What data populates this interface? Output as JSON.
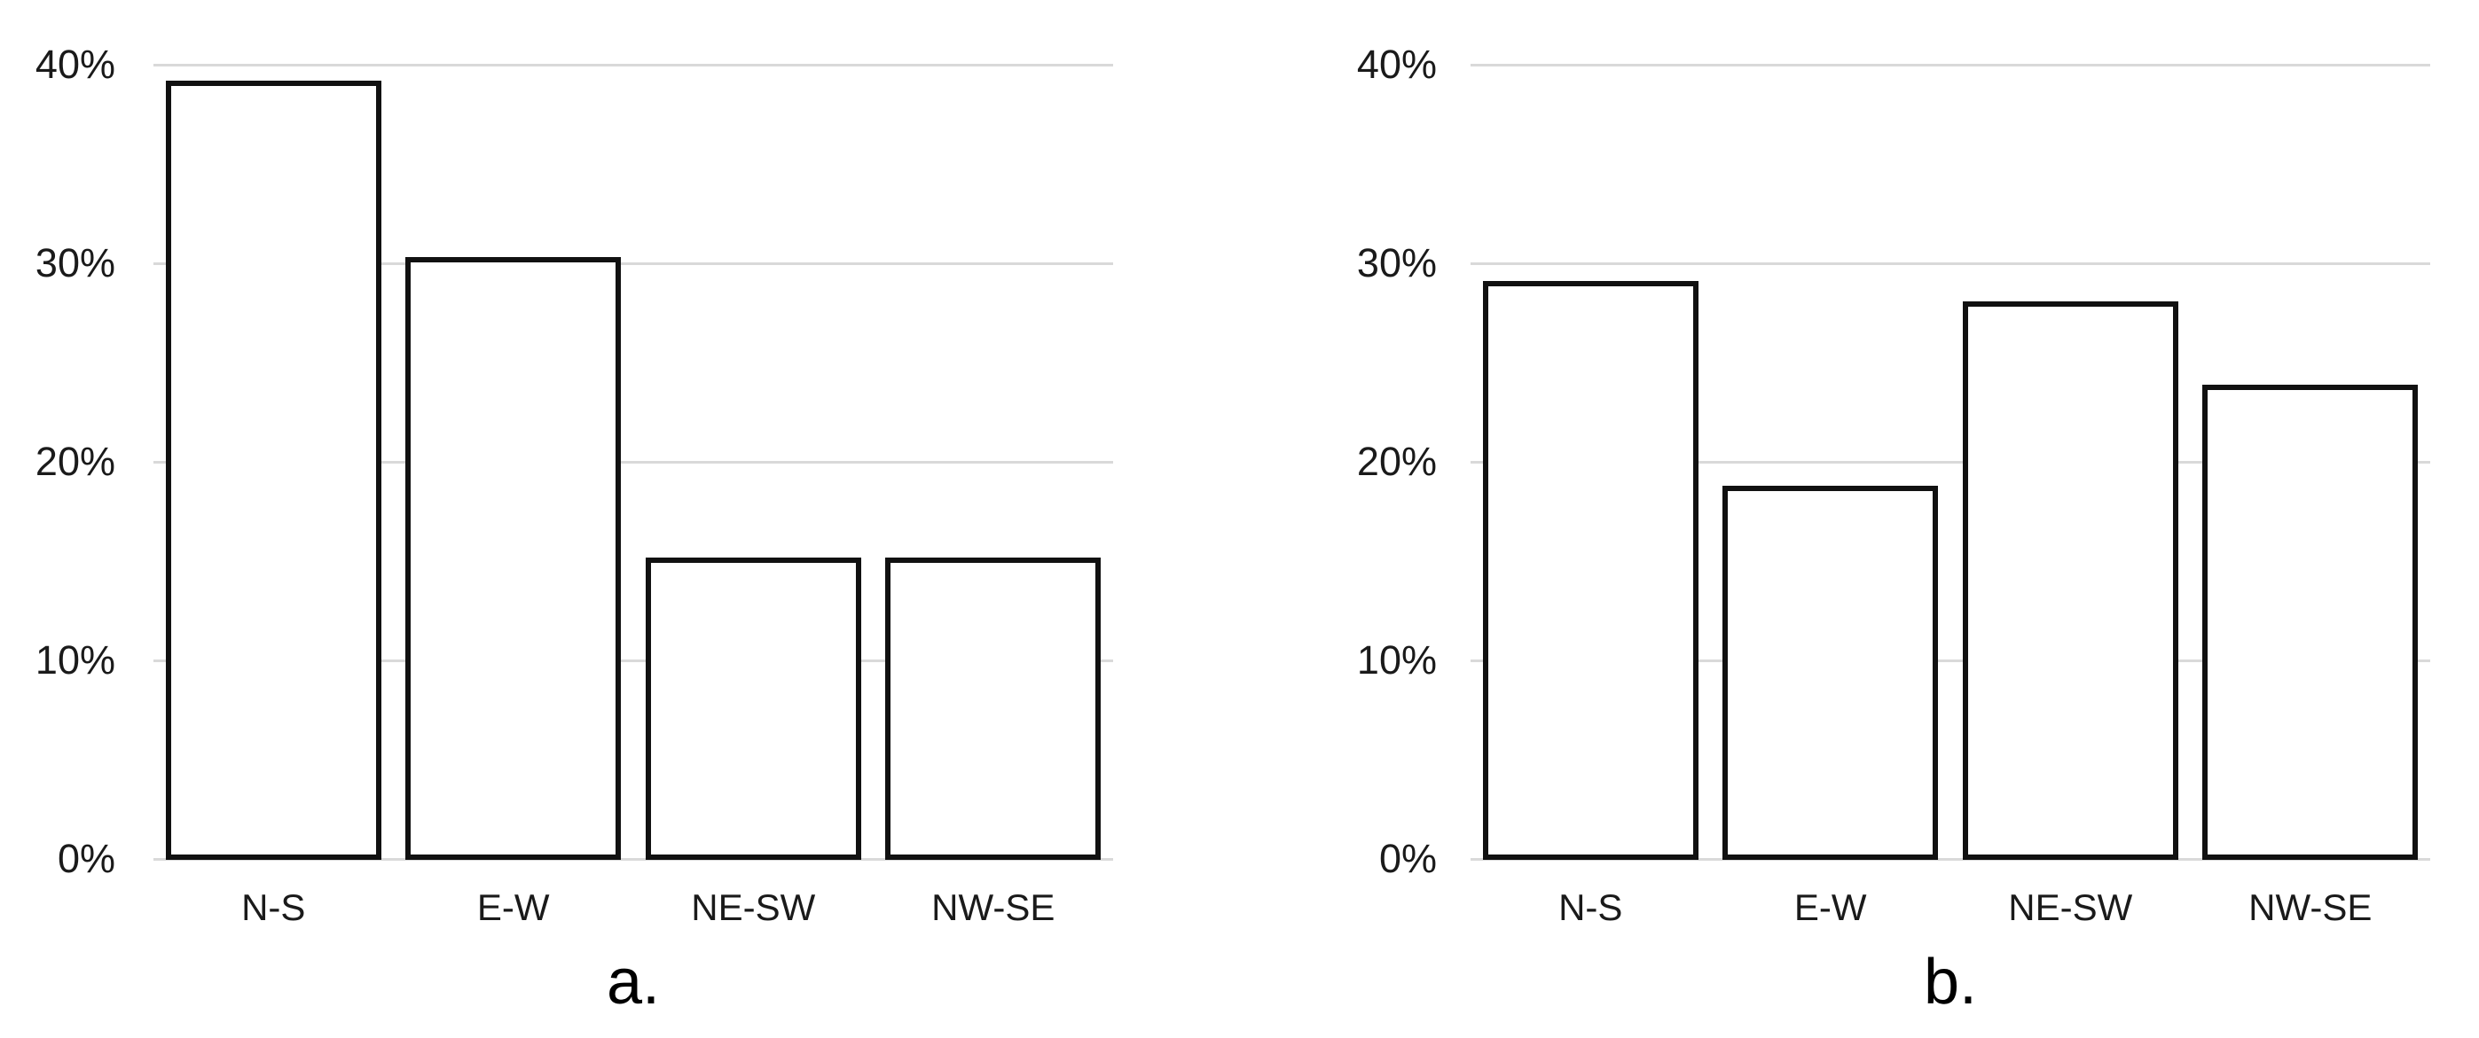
{
  "figure": {
    "background": "#ffffff",
    "text_color": "#1a1a1a",
    "panels": [
      {
        "id": "a",
        "caption": "a."
      },
      {
        "id": "b",
        "caption": "b."
      }
    ]
  },
  "chart_data": [
    {
      "type": "bar",
      "panel": "a",
      "caption": "a.",
      "title": "",
      "xlabel": "",
      "ylabel": "",
      "categories": [
        "N-S",
        "E-W",
        "NE-SW",
        "NW-SE"
      ],
      "values": [
        39.2,
        30.3,
        15.2,
        15.2
      ],
      "ylim": [
        0,
        40
      ],
      "yticks": [
        {
          "value": 40,
          "label": "40%"
        },
        {
          "value": 30,
          "label": "30%"
        },
        {
          "value": 20,
          "label": "20%"
        },
        {
          "value": 10,
          "label": "10%"
        },
        {
          "value": 0,
          "label": "0%"
        }
      ],
      "grid": true,
      "legend": false,
      "bar_fill": "#ffffff",
      "bar_border_color": "#111111",
      "gridline_color": "#d9d9d9",
      "tick_label_color": "#1a1a1a"
    },
    {
      "type": "bar",
      "panel": "b",
      "caption": "b.",
      "title": "",
      "xlabel": "",
      "ylabel": "",
      "categories": [
        "N-S",
        "E-W",
        "NE-SW",
        "NW-SE"
      ],
      "values": [
        29.1,
        18.8,
        28.1,
        23.9
      ],
      "ylim": [
        0,
        40
      ],
      "yticks": [
        {
          "value": 40,
          "label": "40%"
        },
        {
          "value": 30,
          "label": "30%"
        },
        {
          "value": 20,
          "label": "20%"
        },
        {
          "value": 10,
          "label": "10%"
        },
        {
          "value": 0,
          "label": "0%"
        }
      ],
      "grid": true,
      "legend": false,
      "bar_fill": "#ffffff",
      "bar_border_color": "#111111",
      "gridline_color": "#d9d9d9",
      "tick_label_color": "#1a1a1a"
    }
  ]
}
